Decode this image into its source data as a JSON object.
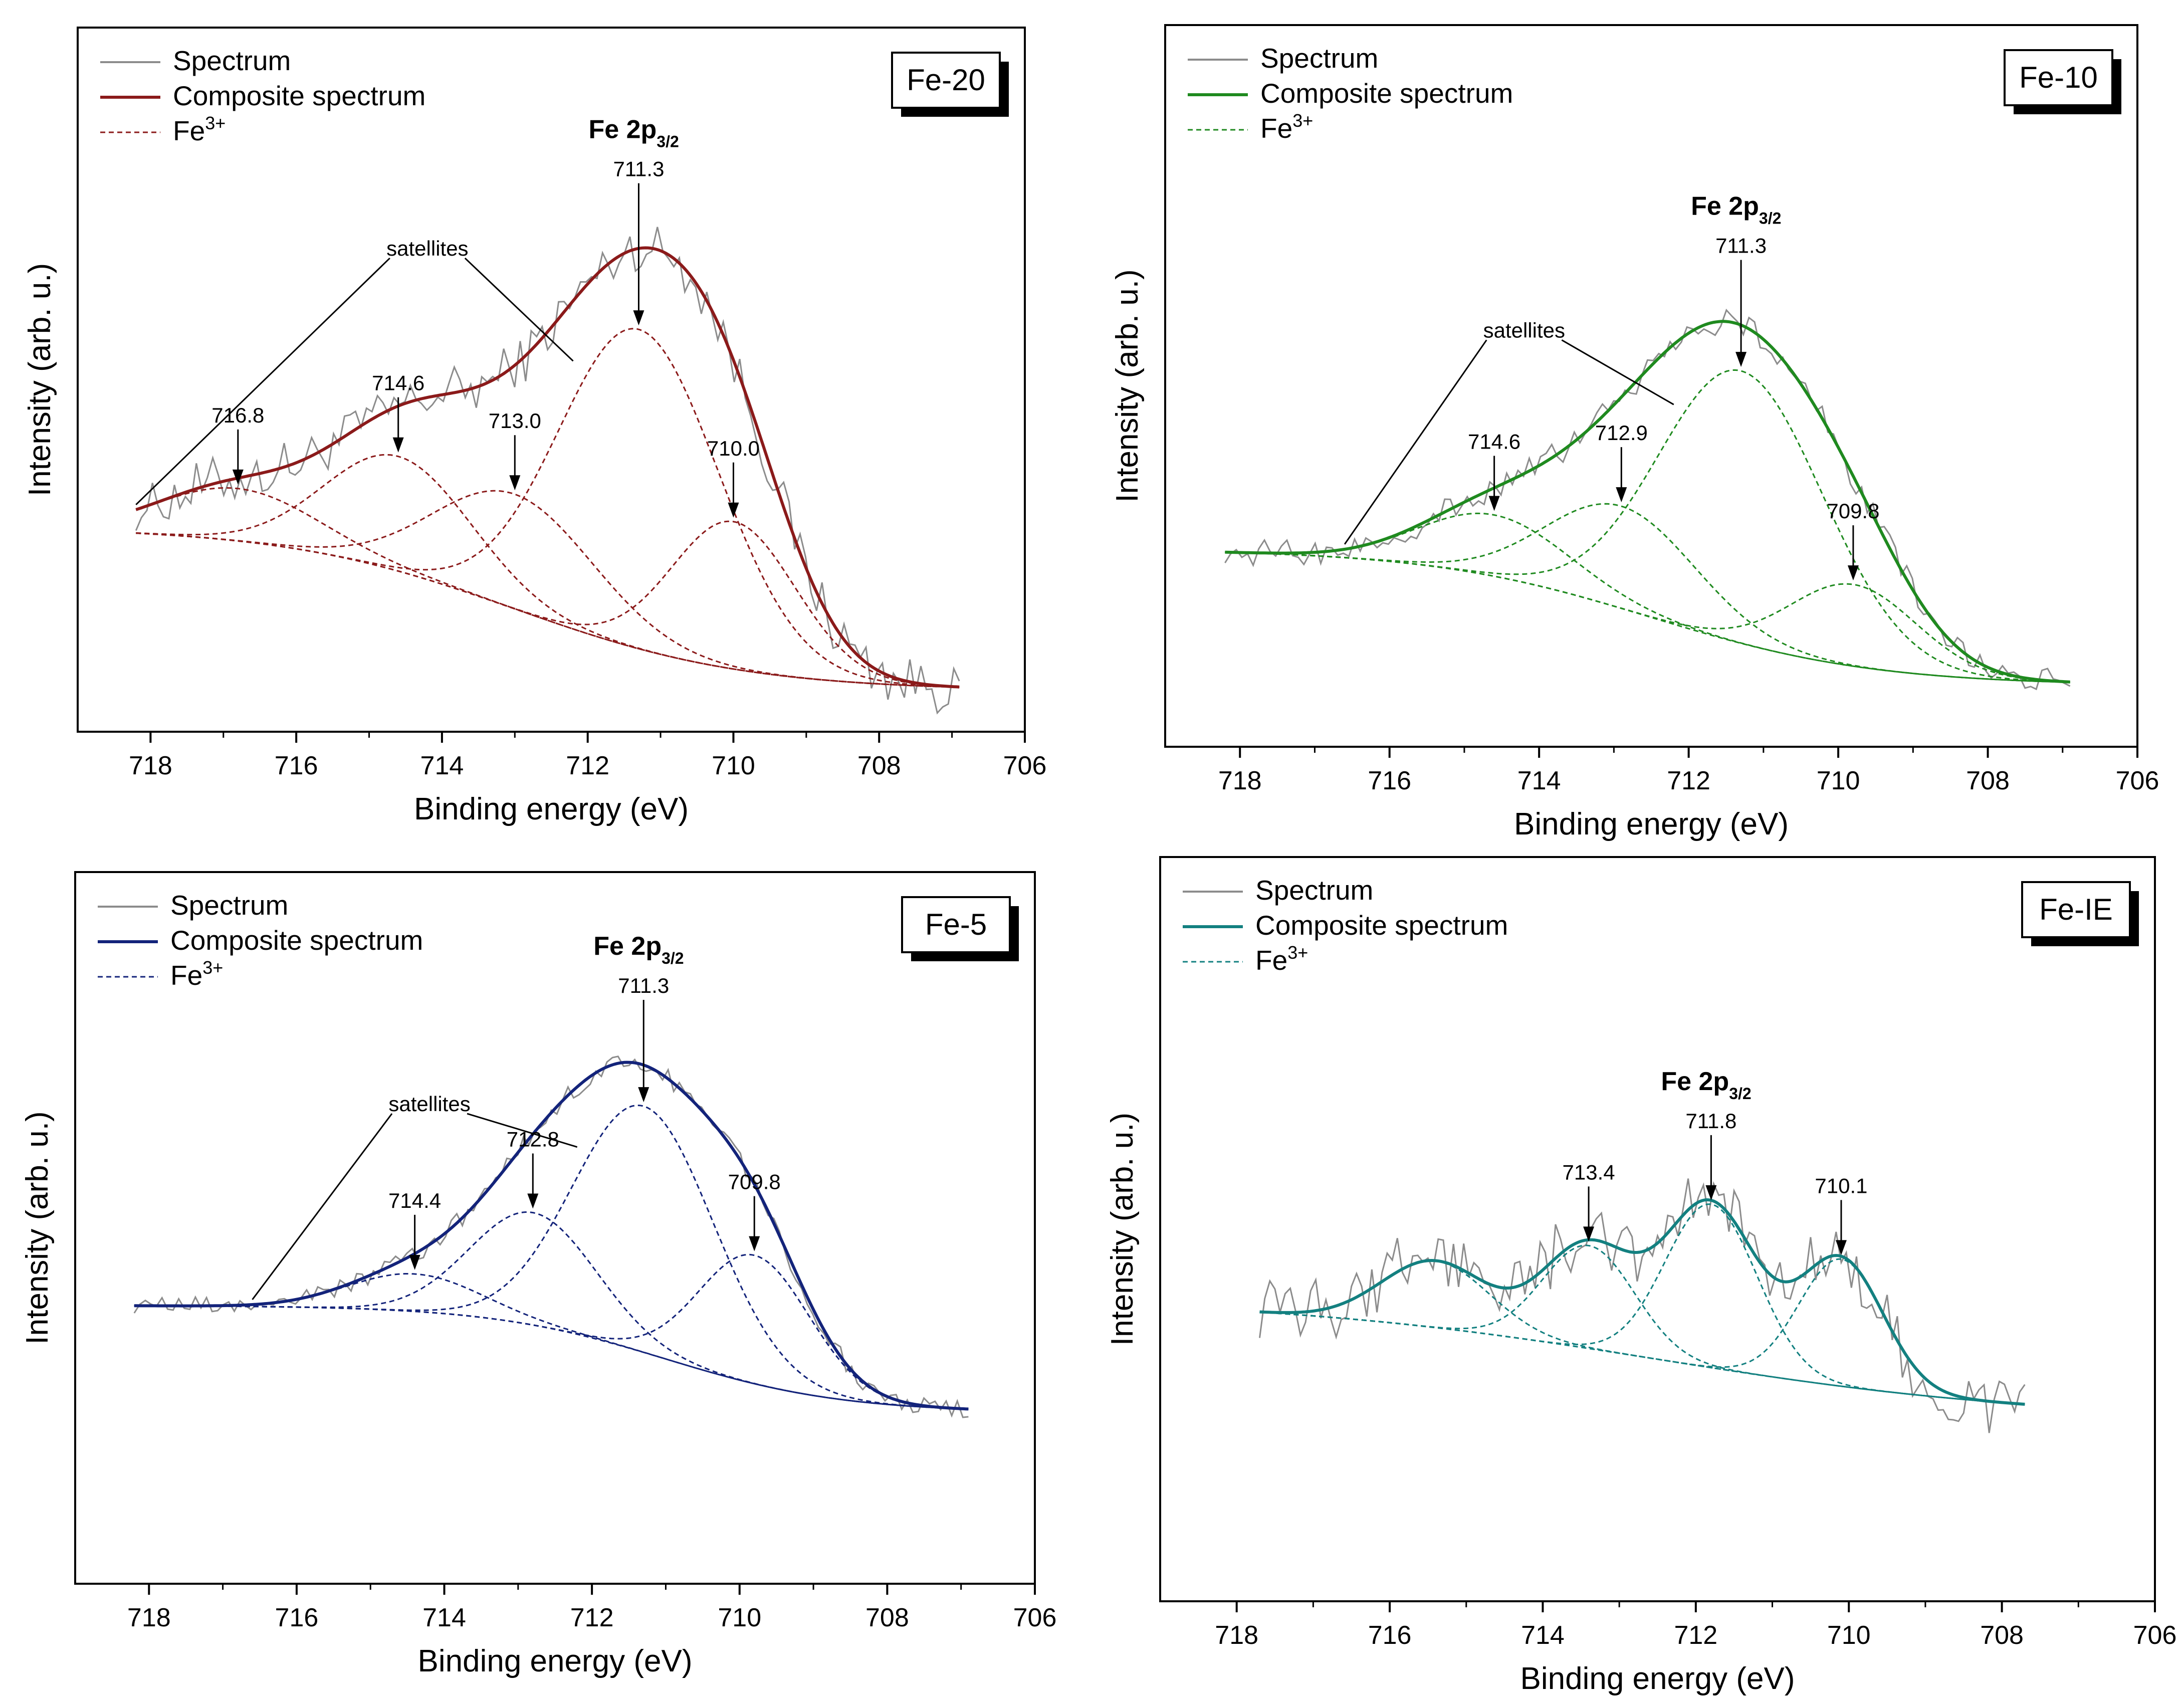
{
  "chart_data": [
    {
      "type": "line",
      "panel_label": "Fe-20",
      "accent_color": "#8b1a1a",
      "title": "",
      "xlabel": "Binding energy (eV)",
      "ylabel": "Intensity (arb. u.)",
      "xlim": [
        719,
        706
      ],
      "x_ticks": [
        "718",
        "716",
        "714",
        "712",
        "710",
        "708",
        "706"
      ],
      "x_range": [
        718.2,
        706.9
      ],
      "baseline": {
        "start": 0.0,
        "end": -1.0,
        "center": 713.0,
        "width": 1.6
      },
      "spectrum_noise": 0.13,
      "legend": {
        "spectrum": "Spectrum",
        "composite": "Composite spectrum",
        "component": "Fe",
        "component_sup": "3+"
      },
      "region_label": {
        "main": "Fe 2p",
        "sub": "3/2"
      },
      "satellites_label": "satellites",
      "peaks": [
        {
          "position": 716.8,
          "label": "716.8",
          "amplitude": 0.32,
          "width": 1.1
        },
        {
          "position": 714.6,
          "label": "714.6",
          "amplitude": 0.7,
          "width": 1.0
        },
        {
          "position": 713.0,
          "label": "713.0",
          "amplitude": 0.7,
          "width": 1.1
        },
        {
          "position": 711.3,
          "label": "711.3",
          "amplitude": 1.95,
          "width": 1.1
        },
        {
          "position": 710.0,
          "label": "710.0",
          "amplitude": 0.9,
          "width": 0.85
        }
      ]
    },
    {
      "type": "line",
      "panel_label": "Fe-10",
      "accent_color": "#1f8a1f",
      "title": "",
      "xlabel": "Binding energy (eV)",
      "ylabel": "Intensity (arb. u.)",
      "xlim": [
        719,
        706
      ],
      "x_ticks": [
        "718",
        "716",
        "714",
        "712",
        "710",
        "708",
        "706"
      ],
      "x_range": [
        718.2,
        706.9
      ],
      "baseline": {
        "start": 0.0,
        "end": -1.0,
        "center": 712.5,
        "width": 1.5
      },
      "spectrum_noise": 0.08,
      "legend": {
        "spectrum": "Spectrum",
        "composite": "Composite spectrum",
        "component": "Fe",
        "component_sup": "3+"
      },
      "region_label": {
        "main": "Fe 2p",
        "sub": "3/2"
      },
      "satellites_label": "satellites",
      "peaks": [
        {
          "position": 714.6,
          "label": "714.6",
          "amplitude": 0.45,
          "width": 1.0
        },
        {
          "position": 712.9,
          "label": "712.9",
          "amplitude": 0.75,
          "width": 1.0
        },
        {
          "position": 711.3,
          "label": "711.3",
          "amplitude": 2.0,
          "width": 1.1
        },
        {
          "position": 709.8,
          "label": "709.8",
          "amplitude": 0.6,
          "width": 0.85
        }
      ]
    },
    {
      "type": "line",
      "panel_label": "Fe-5",
      "accent_color": "#13237a",
      "title": "",
      "xlabel": "Binding energy (eV)",
      "ylabel": "Intensity (arb. u.)",
      "xlim": [
        719,
        706
      ],
      "x_ticks": [
        "718",
        "716",
        "714",
        "712",
        "710",
        "708",
        "706"
      ],
      "x_range": [
        718.2,
        706.9
      ],
      "baseline": {
        "start": 0.0,
        "end": -1.0,
        "center": 711.0,
        "width": 1.2
      },
      "spectrum_noise": 0.07,
      "legend": {
        "spectrum": "Spectrum",
        "composite": "Composite spectrum",
        "component": "Fe",
        "component_sup": "3+"
      },
      "region_label": {
        "main": "Fe 2p",
        "sub": "3/2"
      },
      "satellites_label": "satellites",
      "peaks": [
        {
          "position": 714.4,
          "label": "714.4",
          "amplitude": 0.35,
          "width": 0.9
        },
        {
          "position": 712.8,
          "label": "712.8",
          "amplitude": 1.05,
          "width": 0.85
        },
        {
          "position": 711.3,
          "label": "711.3",
          "amplitude": 2.3,
          "width": 0.95
        },
        {
          "position": 709.8,
          "label": "709.8",
          "amplitude": 1.2,
          "width": 0.75
        }
      ]
    },
    {
      "type": "line",
      "panel_label": "Fe-IE",
      "accent_color": "#138080",
      "title": "",
      "xlabel": "Binding energy (eV)",
      "ylabel": "Intensity (arb. u.)",
      "xlim": [
        719,
        706
      ],
      "x_ticks": [
        "718",
        "716",
        "714",
        "712",
        "710",
        "708",
        "706"
      ],
      "x_range": [
        717.7,
        707.7
      ],
      "baseline": {
        "start": 0.0,
        "end": -1.0,
        "center": 712.5,
        "width": 2.5
      },
      "spectrum_noise": 0.22,
      "legend": {
        "spectrum": "Spectrum",
        "composite": "Composite spectrum",
        "component": "Fe",
        "component_sup": "3+"
      },
      "region_label": {
        "main": "Fe 2p",
        "sub": "3/2"
      },
      "satellites_label": "",
      "peaks": [
        {
          "position": 715.4,
          "label": "",
          "amplitude": 0.55,
          "width": 0.7
        },
        {
          "position": 713.4,
          "label": "713.4",
          "amplitude": 0.85,
          "width": 0.6
        },
        {
          "position": 711.8,
          "label": "711.8",
          "amplitude": 1.35,
          "width": 0.6
        },
        {
          "position": 710.1,
          "label": "710.1",
          "amplitude": 1.05,
          "width": 0.55
        }
      ]
    }
  ]
}
